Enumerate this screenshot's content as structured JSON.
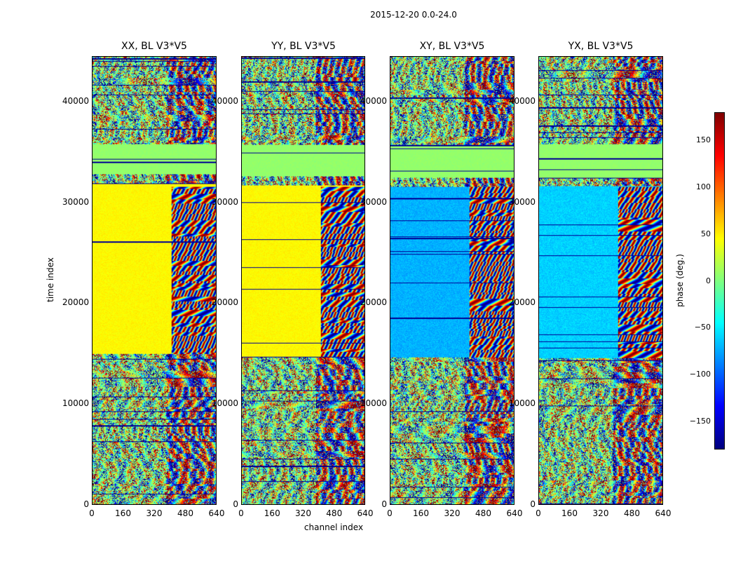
{
  "figure": {
    "suptitle": "2015-12-20 0.0-24.0"
  },
  "chart_data": {
    "type": "heatmap",
    "panels": [
      {
        "name": "xx",
        "title": "XX, BL V3*V5"
      },
      {
        "name": "yy",
        "title": "YY, BL V3*V5"
      },
      {
        "name": "xy",
        "title": "XY, BL V3*V5"
      },
      {
        "name": "yx",
        "title": "YX, BL V3*V5"
      }
    ],
    "xlabel": "channel index",
    "ylabel": "time index",
    "xlim": [
      0,
      640
    ],
    "ylim": [
      0,
      44500
    ],
    "xticks": [
      "0",
      "160",
      "320",
      "480",
      "640"
    ],
    "xtick_values": [
      0,
      160,
      320,
      480,
      640
    ],
    "yticks": [
      "0",
      "10000",
      "20000",
      "30000",
      "40000"
    ],
    "ytick_values": [
      0,
      10000,
      20000,
      30000,
      40000
    ],
    "colorbar": {
      "label": "phase (deg.)",
      "range": [
        -180,
        180
      ],
      "ticks": [
        "−150",
        "−100",
        "−50",
        "0",
        "50",
        "100",
        "150"
      ],
      "tick_values": [
        -150,
        -100,
        -50,
        0,
        50,
        100,
        150
      ],
      "colormap": "jet"
    }
  }
}
